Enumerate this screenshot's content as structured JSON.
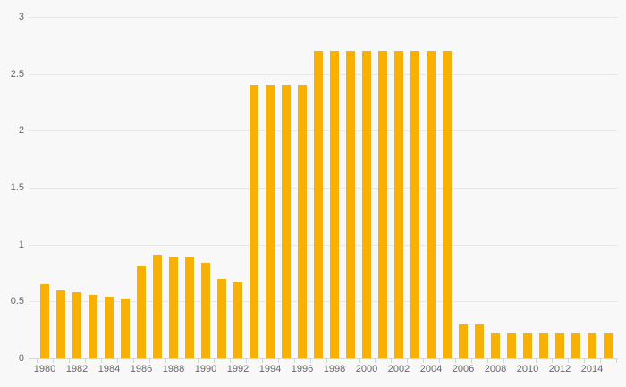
{
  "chart_data": {
    "type": "bar",
    "title": "",
    "xlabel": "",
    "ylabel": "",
    "x": [
      1980,
      1981,
      1982,
      1983,
      1984,
      1985,
      1986,
      1987,
      1988,
      1989,
      1990,
      1991,
      1992,
      1993,
      1994,
      1995,
      1996,
      1997,
      1998,
      1999,
      2000,
      2001,
      2002,
      2003,
      2004,
      2005,
      2006,
      2007,
      2008,
      2009,
      2010,
      2011,
      2012,
      2013,
      2014,
      2015
    ],
    "values": [
      0.65,
      0.6,
      0.58,
      0.56,
      0.54,
      0.53,
      0.81,
      0.91,
      0.89,
      0.89,
      0.84,
      0.7,
      0.67,
      2.4,
      2.4,
      2.4,
      2.4,
      2.7,
      2.7,
      2.7,
      2.7,
      2.7,
      2.7,
      2.7,
      2.7,
      2.7,
      0.3,
      0.3,
      0.22,
      0.22,
      0.22,
      0.22,
      0.22,
      0.22,
      0.22,
      0.22
    ],
    "ylim": [
      0,
      3
    ],
    "yticks": [
      0,
      0.5,
      1,
      1.5,
      2,
      2.5,
      3
    ],
    "ytick_labels": [
      "0",
      "0.5",
      "1",
      "1.5",
      "2",
      "2.5",
      "3"
    ],
    "xtick_label_years": [
      1980,
      1982,
      1984,
      1986,
      1988,
      1990,
      1992,
      1994,
      1996,
      1998,
      2000,
      2002,
      2004,
      2006,
      2008,
      2010,
      2012,
      2014
    ],
    "xtick_labels": [
      "1980",
      "1982",
      "1984",
      "1986",
      "1988",
      "1990",
      "1992",
      "1994",
      "1996",
      "1998",
      "2000",
      "2002",
      "2004",
      "2006",
      "2008",
      "2010",
      "2012",
      "2014"
    ],
    "grid": true,
    "legend": false,
    "colors": {
      "background": "#f8f8f8",
      "bar": "#f9b004",
      "gridline": "#e7e7e7",
      "axis_line": "#ccd6eb",
      "tick": "#ccd6eb",
      "label": "#666666"
    }
  }
}
